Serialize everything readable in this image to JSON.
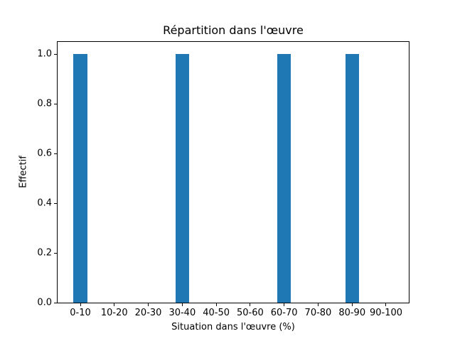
{
  "chart_data": {
    "type": "bar",
    "title": "Répartition dans l'œuvre",
    "xlabel": "Situation dans l'œuvre (%)",
    "ylabel": "Effectif",
    "categories": [
      "0-10",
      "10-20",
      "20-30",
      "30-40",
      "40-50",
      "50-60",
      "60-70",
      "70-80",
      "80-90",
      "90-100"
    ],
    "values": [
      1,
      0,
      0,
      1,
      0,
      0,
      1,
      0,
      1,
      0
    ],
    "ytick_labels": [
      "0.0",
      "0.2",
      "0.4",
      "0.6",
      "0.8",
      "1.0"
    ],
    "ylim": [
      0,
      1.05
    ],
    "xlim": [
      -0.67,
      9.67
    ],
    "bar_width_fraction": 0.4,
    "bar_color": "#1f77b4",
    "spine_color": "#000000",
    "background_color": "#ffffff",
    "grid": false,
    "legend": false
  }
}
